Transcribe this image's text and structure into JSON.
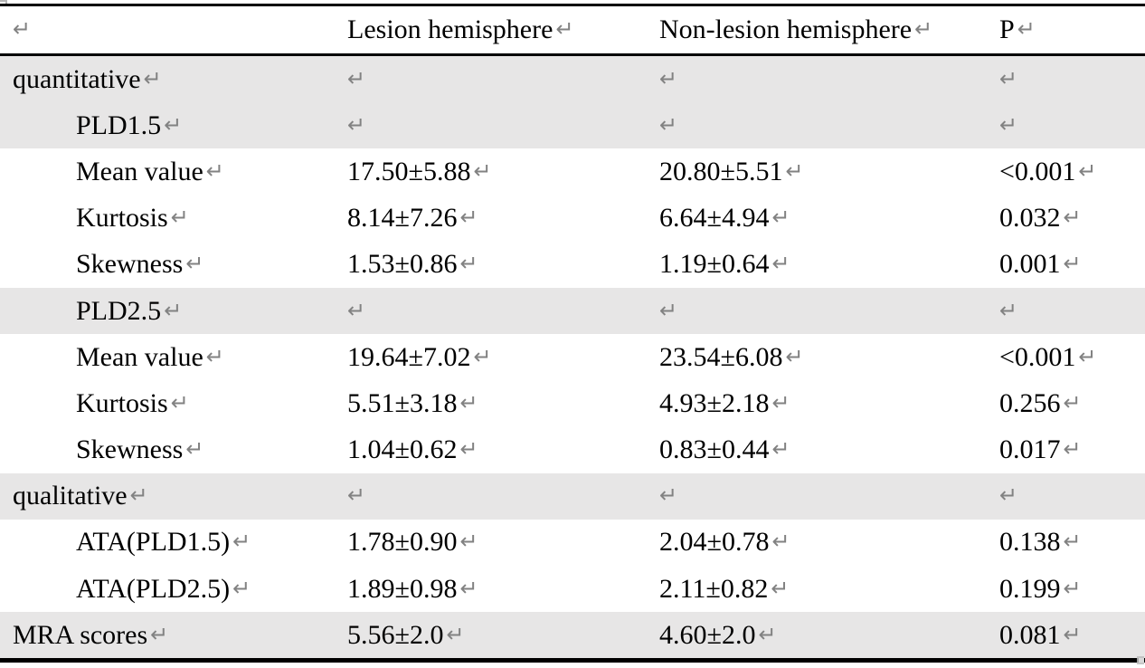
{
  "marks": {
    "return": "↵"
  },
  "colors": {
    "row_shade": "#e7e6e6",
    "border": "#000000",
    "return_mark_gray": "#828282"
  },
  "table": {
    "header": {
      "col0": "",
      "col1": "Lesion hemisphere",
      "col2": "Non-lesion hemisphere",
      "col3": "P"
    },
    "rows": [
      {
        "label": "quantitative",
        "lesion": "",
        "nonlesion": "",
        "p": ""
      },
      {
        "label": "PLD1.5",
        "lesion": "",
        "nonlesion": "",
        "p": ""
      },
      {
        "label": "Mean value",
        "lesion": "17.50±5.88",
        "nonlesion": "20.80±5.51",
        "p": "<0.001"
      },
      {
        "label": "Kurtosis",
        "lesion": "8.14±7.26",
        "nonlesion": "6.64±4.94",
        "p": "0.032"
      },
      {
        "label": "Skewness",
        "lesion": "1.53±0.86",
        "nonlesion": "1.19±0.64",
        "p": "0.001"
      },
      {
        "label": "PLD2.5",
        "lesion": "",
        "nonlesion": "",
        "p": ""
      },
      {
        "label": "Mean value",
        "lesion": "19.64±7.02",
        "nonlesion": "23.54±6.08",
        "p": "<0.001"
      },
      {
        "label": "Kurtosis",
        "lesion": "5.51±3.18",
        "nonlesion": "4.93±2.18",
        "p": "0.256"
      },
      {
        "label": "Skewness",
        "lesion": "1.04±0.62",
        "nonlesion": "0.83±0.44",
        "p": "0.017"
      },
      {
        "label": "qualitative",
        "lesion": "",
        "nonlesion": "",
        "p": ""
      },
      {
        "label": "ATA(PLD1.5)",
        "lesion": "1.78±0.90",
        "nonlesion": "2.04±0.78",
        "p": "0.138"
      },
      {
        "label": "ATA(PLD2.5)",
        "lesion": "1.89±0.98",
        "nonlesion": "2.11±0.82",
        "p": "0.199"
      },
      {
        "label": "MRA scores",
        "lesion": "5.56±2.0",
        "nonlesion": "4.60±2.0",
        "p": "0.081"
      }
    ]
  }
}
